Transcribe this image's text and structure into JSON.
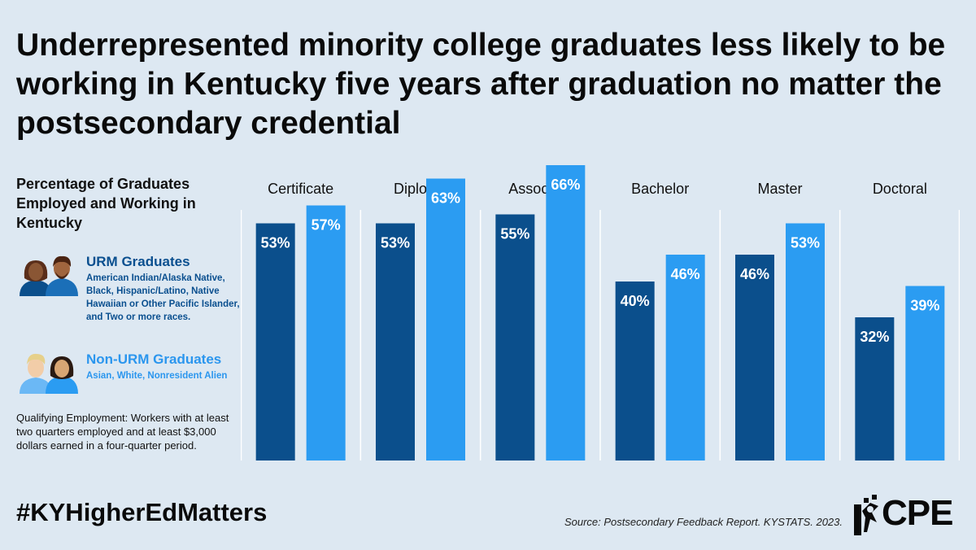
{
  "title": "Underrepresented minority college graduates less likely to be working in Kentucky five years after graduation no matter the postsecondary credential",
  "legend": {
    "heading": "Percentage of Graduates Employed and Working in Kentucky",
    "urm": {
      "name": "URM Graduates",
      "description": "American Indian/Alaska Native, Black, Hispanic/Latino, Native Hawaiian or Other Pacific Islander, and Two or more races."
    },
    "non_urm": {
      "name": "Non-URM Graduates",
      "description": "Asian, White, Nonresident Alien"
    }
  },
  "note": "Qualifying Employment: Workers with at least two quarters employed and at least $3,000 dollars earned in a four-quarter period.",
  "footer": {
    "hashtag": "#KYHigherEdMatters",
    "source": "Source: Postsecondary Feedback Report. KYSTATS. 2023.",
    "logo_text": "CPE"
  },
  "colors": {
    "background": "#dde8f2",
    "urm": "#0b4f8c",
    "non_urm": "#2b9cf2",
    "grid": "#ffffff"
  },
  "chart_data": {
    "type": "bar",
    "categories": [
      "Certificate",
      "Diploma",
      "Associate",
      "Bachelor",
      "Master",
      "Doctoral"
    ],
    "series": [
      {
        "name": "URM Graduates",
        "values": [
          53,
          53,
          55,
          40,
          46,
          32
        ]
      },
      {
        "name": "Non-URM Graduates",
        "values": [
          57,
          63,
          66,
          46,
          53,
          39
        ]
      }
    ],
    "ylim": [
      0,
      100
    ],
    "value_suffix": "%",
    "xlabel": "",
    "ylabel": ""
  }
}
